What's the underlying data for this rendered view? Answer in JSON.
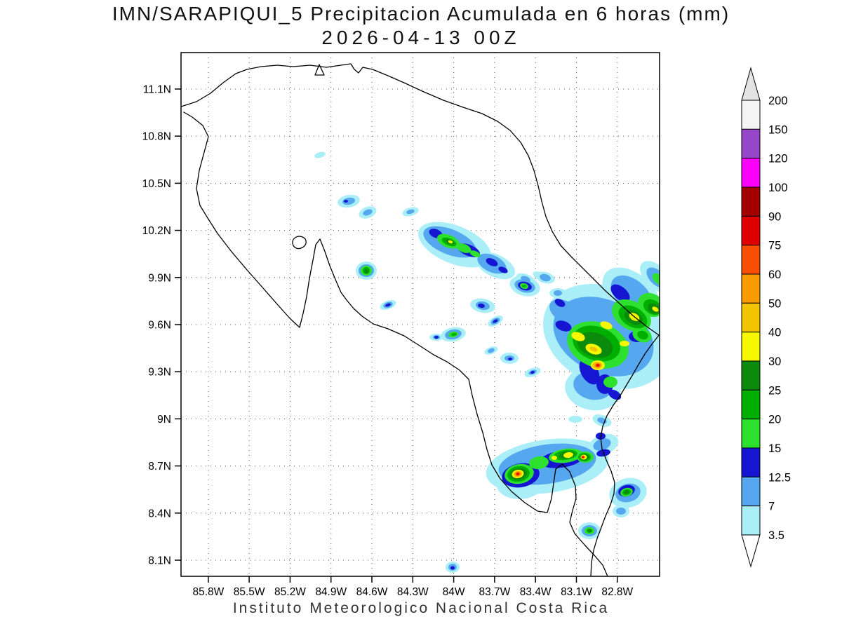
{
  "title": {
    "line1": "IMN/SARAPIQUI_5 Precipitacion Acumulada en 6 horas (mm)",
    "line2": "2026-04-13 00Z"
  },
  "footer": "Instituto Meteorologico Nacional Costa Rica",
  "axes": {
    "lat_ticks": [
      {
        "label": "11.1N",
        "value": 11.1
      },
      {
        "label": "10.8N",
        "value": 10.8
      },
      {
        "label": "10.5N",
        "value": 10.5
      },
      {
        "label": "10.2N",
        "value": 10.2
      },
      {
        "label": "9.9N",
        "value": 9.9
      },
      {
        "label": "9.6N",
        "value": 9.6
      },
      {
        "label": "9.3N",
        "value": 9.3
      },
      {
        "label": "9N",
        "value": 9.0
      },
      {
        "label": "8.7N",
        "value": 8.7
      },
      {
        "label": "8.4N",
        "value": 8.4
      },
      {
        "label": "8.1N",
        "value": 8.1
      }
    ],
    "lon_ticks": [
      {
        "label": "85.8W",
        "value": 85.8
      },
      {
        "label": "85.5W",
        "value": 85.5
      },
      {
        "label": "85.2W",
        "value": 85.2
      },
      {
        "label": "84.9W",
        "value": 84.9
      },
      {
        "label": "84.6W",
        "value": 84.6
      },
      {
        "label": "84.3W",
        "value": 84.3
      },
      {
        "label": "84W",
        "value": 84.0
      },
      {
        "label": "83.7W",
        "value": 83.7
      },
      {
        "label": "83.4W",
        "value": 83.4
      },
      {
        "label": "83.1W",
        "value": 83.1
      },
      {
        "label": "82.8W",
        "value": 82.8
      }
    ]
  },
  "colorbar": {
    "boundary_labels": [
      "200",
      "150",
      "120",
      "100",
      "90",
      "75",
      "60",
      "50",
      "40",
      "30",
      "25",
      "20",
      "15",
      "12.5",
      "7",
      "3.5"
    ],
    "above_max_color": "#e3e3e3",
    "below_min_color": "#ffffff"
  },
  "chart_data": {
    "type": "heatmap",
    "kind": "precipitation-contour-map",
    "units": "mm",
    "region": "Costa Rica",
    "lon_range_deg_w": [
      86.0,
      82.49
    ],
    "lat_range_deg_n": [
      8.0,
      11.33
    ],
    "grid": true,
    "levels_mm": [
      3.5,
      7,
      12.5,
      15,
      20,
      25,
      30,
      40,
      50,
      60,
      75,
      90,
      100,
      120,
      150,
      200
    ],
    "level_colors": [
      "#aaeef8",
      "#55a7f0",
      "#1616d2",
      "#2ee02e",
      "#00ae00",
      "#0b8a0b",
      "#f7f700",
      "#f2c400",
      "#fa9c00",
      "#f84e00",
      "#e00000",
      "#a40000",
      "#fa00fa",
      "#9646c8",
      "#f5f5f5",
      "#e3e3e3"
    ],
    "cells": [
      [
        3.5,
        456,
        221,
        8,
        4,
        -15
      ],
      [
        3.5,
        497,
        287,
        16,
        9,
        -10
      ],
      [
        7,
        497,
        287,
        9,
        5,
        -10
      ],
      [
        12.5,
        493,
        287,
        3,
        2,
        0
      ],
      [
        3.5,
        524,
        303,
        13,
        8,
        -20
      ],
      [
        7,
        524,
        303,
        7,
        4,
        -20
      ],
      [
        3.5,
        585,
        302,
        12,
        6,
        -15
      ],
      [
        7,
        585,
        302,
        6,
        3,
        -15
      ],
      [
        3.5,
        648,
        349,
        55,
        27,
        22
      ],
      [
        3.5,
        706,
        379,
        30,
        16,
        25
      ],
      [
        7,
        641,
        345,
        40,
        18,
        22
      ],
      [
        7,
        701,
        376,
        22,
        12,
        25
      ],
      [
        12.5,
        621,
        333,
        10,
        6,
        22
      ],
      [
        12.5,
        668,
        357,
        17,
        8,
        22
      ],
      [
        12.5,
        701,
        374,
        9,
        5,
        25
      ],
      [
        12.5,
        717,
        385,
        7,
        4,
        25
      ],
      [
        15,
        639,
        344,
        17,
        9,
        22
      ],
      [
        15,
        661,
        354,
        11,
        6,
        22
      ],
      [
        15,
        677,
        362,
        8,
        4,
        22
      ],
      [
        20,
        640,
        345,
        11,
        5,
        22
      ],
      [
        25,
        641,
        345,
        6,
        3,
        22
      ],
      [
        30,
        642,
        345,
        3.5,
        2,
        22
      ],
      [
        3.5,
        749,
        398,
        14,
        7,
        20
      ],
      [
        7,
        749,
        398,
        7,
        4,
        20
      ],
      [
        3.5,
        769,
        393,
        10,
        5,
        20
      ],
      [
        3.5,
        522,
        386,
        15,
        13,
        0
      ],
      [
        7,
        522,
        386,
        11,
        9,
        0
      ],
      [
        15,
        522,
        386,
        8,
        7,
        0
      ],
      [
        20,
        522,
        386,
        5,
        5,
        0
      ],
      [
        25,
        522,
        387,
        3,
        3,
        0
      ],
      [
        3.5,
        553,
        435,
        12,
        6,
        -20
      ],
      [
        7,
        553,
        435,
        7,
        4,
        -20
      ],
      [
        12.5,
        553,
        435,
        4,
        2,
        -20
      ],
      [
        3.5,
        688,
        436,
        18,
        10,
        10
      ],
      [
        7,
        688,
        436,
        10,
        6,
        10
      ],
      [
        12.5,
        686,
        436,
        5,
        3,
        10
      ],
      [
        3.5,
        748,
        408,
        22,
        14,
        15
      ],
      [
        7,
        748,
        408,
        15,
        9,
        15
      ],
      [
        12.5,
        748,
        408,
        10,
        6,
        15
      ],
      [
        15,
        747,
        408,
        6,
        4,
        15
      ],
      [
        20,
        747,
        408,
        3,
        2,
        0
      ],
      [
        3.5,
        777,
        396,
        14,
        8,
        15
      ],
      [
        7,
        777,
        396,
        8,
        5,
        15
      ],
      [
        3.5,
        795,
        418,
        12,
        7,
        0
      ],
      [
        7,
        795,
        418,
        6,
        4,
        0
      ],
      [
        3.5,
        646,
        477,
        18,
        10,
        -10
      ],
      [
        7,
        646,
        477,
        12,
        7,
        -10
      ],
      [
        15,
        646,
        477,
        7,
        4,
        -10
      ],
      [
        20,
        647,
        477,
        4,
        2,
        -10
      ],
      [
        3.5,
        622,
        481,
        10,
        5,
        0
      ],
      [
        7,
        622,
        481,
        5,
        3,
        0
      ],
      [
        12.5,
        622,
        481,
        3,
        2,
        0
      ],
      [
        3.5,
        706,
        458,
        12,
        6,
        -30
      ],
      [
        7,
        706,
        458,
        7,
        4,
        -30
      ],
      [
        12.5,
        706,
        458,
        4,
        2,
        -30
      ],
      [
        3.5,
        726,
        511,
        13,
        8,
        0
      ],
      [
        7,
        726,
        511,
        7,
        4,
        0
      ],
      [
        12.5,
        727,
        512,
        3,
        2,
        0
      ],
      [
        3.5,
        700,
        500,
        10,
        5,
        -20
      ],
      [
        7,
        700,
        500,
        5,
        3,
        -20
      ],
      [
        3.5,
        759,
        531,
        12,
        6,
        -20
      ],
      [
        7,
        759,
        531,
        6,
        3,
        -20
      ],
      [
        12.5,
        759,
        531,
        3,
        2,
        -20
      ],
      [
        3.5,
        865,
        480,
        95,
        70,
        25
      ],
      [
        3.5,
        845,
        555,
        40,
        30,
        10
      ],
      [
        3.5,
        900,
        420,
        48,
        30,
        40
      ],
      [
        3.5,
        935,
        395,
        28,
        16,
        45
      ],
      [
        7,
        860,
        480,
        75,
        52,
        25
      ],
      [
        7,
        845,
        550,
        28,
        20,
        10
      ],
      [
        7,
        900,
        420,
        34,
        21,
        40
      ],
      [
        7,
        806,
        445,
        25,
        15,
        30
      ],
      [
        7,
        936,
        396,
        18,
        10,
        45
      ],
      [
        12.5,
        803,
        465,
        12,
        7,
        20
      ],
      [
        12.5,
        840,
        530,
        20,
        12,
        60
      ],
      [
        12.5,
        862,
        548,
        12,
        14,
        0
      ],
      [
        12.5,
        884,
        418,
        16,
        9,
        40
      ],
      [
        12.5,
        908,
        480,
        12,
        8,
        0
      ],
      [
        12.5,
        798,
        432,
        8,
        5,
        30
      ],
      [
        12.5,
        876,
        563,
        10,
        6,
        30
      ],
      [
        15,
        852,
        492,
        45,
        32,
        20
      ],
      [
        15,
        900,
        450,
        30,
        20,
        30
      ],
      [
        15,
        928,
        435,
        20,
        16,
        30
      ],
      [
        15,
        870,
        545,
        10,
        8,
        0
      ],
      [
        15,
        938,
        398,
        10,
        6,
        45
      ],
      [
        15,
        915,
        478,
        14,
        10,
        20
      ],
      [
        20,
        850,
        490,
        35,
        24,
        20
      ],
      [
        20,
        902,
        452,
        22,
        14,
        30
      ],
      [
        20,
        930,
        438,
        14,
        10,
        30
      ],
      [
        20,
        916,
        478,
        8,
        6,
        20
      ],
      [
        25,
        848,
        492,
        26,
        17,
        20
      ],
      [
        25,
        903,
        453,
        14,
        9,
        30
      ],
      [
        25,
        932,
        440,
        9,
        7,
        30
      ],
      [
        30,
        824,
        480,
        10,
        6,
        20
      ],
      [
        30,
        846,
        498,
        12,
        7,
        20
      ],
      [
        30,
        864,
        464,
        9,
        5,
        20
      ],
      [
        30,
        890,
        490,
        7,
        4,
        0
      ],
      [
        30,
        904,
        452,
        8,
        5,
        30
      ],
      [
        30,
        852,
        521,
        10,
        7,
        0
      ],
      [
        30,
        934,
        441,
        5,
        3,
        30
      ],
      [
        40,
        851,
        521,
        7,
        5,
        0
      ],
      [
        40,
        846,
        498,
        6,
        3,
        20
      ],
      [
        50,
        852,
        521,
        5,
        3.5,
        0
      ],
      [
        60,
        852,
        521,
        3.5,
        2.5,
        0
      ],
      [
        75,
        852,
        521,
        2,
        1.5,
        0
      ],
      [
        3.5,
        858,
        600,
        14,
        8,
        20
      ],
      [
        7,
        858,
        600,
        7,
        4,
        20
      ],
      [
        3.5,
        820,
        598,
        10,
        5,
        0
      ],
      [
        3.5,
        780,
        665,
        88,
        38,
        -8
      ],
      [
        3.5,
        740,
        692,
        32,
        20,
        0
      ],
      [
        3.5,
        860,
        634,
        22,
        14,
        -20
      ],
      [
        7,
        780,
        662,
        70,
        28,
        -8
      ],
      [
        7,
        858,
        634,
        13,
        8,
        -20
      ],
      [
        12.5,
        742,
        678,
        27,
        17,
        -10
      ],
      [
        12.5,
        800,
        655,
        31,
        12,
        -8
      ],
      [
        12.5,
        860,
        646,
        10,
        5,
        -10
      ],
      [
        12.5,
        856,
        622,
        7,
        5,
        0
      ],
      [
        15,
        740,
        676,
        21,
        14,
        -10
      ],
      [
        15,
        768,
        660,
        14,
        9,
        -8
      ],
      [
        15,
        806,
        650,
        24,
        10,
        -8
      ],
      [
        15,
        834,
        652,
        12,
        8,
        0
      ],
      [
        20,
        739,
        676,
        16,
        11,
        -10
      ],
      [
        20,
        806,
        649,
        17,
        7,
        -8
      ],
      [
        20,
        833,
        652,
        9,
        6,
        0
      ],
      [
        25,
        739,
        676,
        12,
        8,
        -10
      ],
      [
        25,
        808,
        649,
        11,
        5,
        -8
      ],
      [
        25,
        833,
        652,
        6,
        4.5,
        0
      ],
      [
        30,
        738,
        676,
        8.5,
        6,
        -10
      ],
      [
        30,
        810,
        649,
        7,
        4,
        -8
      ],
      [
        30,
        832,
        652,
        4.5,
        3.5,
        0
      ],
      [
        30,
        790,
        653,
        4,
        3,
        0
      ],
      [
        40,
        738,
        676,
        6,
        4.5,
        -10
      ],
      [
        50,
        738,
        676,
        4.5,
        3.5,
        -10
      ],
      [
        50,
        831,
        652,
        3,
        2.5,
        0
      ],
      [
        60,
        738,
        676,
        3,
        2.5,
        -10
      ],
      [
        75,
        738,
        676,
        1.8,
        1.5,
        -10
      ],
      [
        75,
        831,
        652,
        1.6,
        1.4,
        0
      ],
      [
        3.5,
        895,
        703,
        27,
        21,
        -15
      ],
      [
        7,
        895,
        703,
        18,
        13,
        -15
      ],
      [
        12.5,
        893,
        700,
        12,
        8,
        -15
      ],
      [
        15,
        893,
        702,
        9,
        6,
        -15
      ],
      [
        20,
        893,
        702,
        6,
        4,
        -15
      ],
      [
        25,
        893,
        702,
        3.5,
        2.5,
        -15
      ],
      [
        3.5,
        885,
        729,
        12,
        9,
        0
      ],
      [
        7,
        885,
        729,
        7,
        5,
        0
      ],
      [
        3.5,
        840,
        757,
        16,
        12,
        0
      ],
      [
        7,
        840,
        757,
        11,
        8,
        0
      ],
      [
        15,
        840,
        757,
        7,
        5,
        0
      ],
      [
        20,
        840,
        757,
        4,
        3,
        0
      ],
      [
        25,
        841,
        757,
        2.5,
        2,
        0
      ],
      [
        3.5,
        645,
        809,
        10,
        8,
        0
      ],
      [
        7,
        645,
        809,
        6,
        5,
        0
      ],
      [
        12.5,
        645,
        810,
        3,
        2.5,
        0
      ]
    ]
  }
}
